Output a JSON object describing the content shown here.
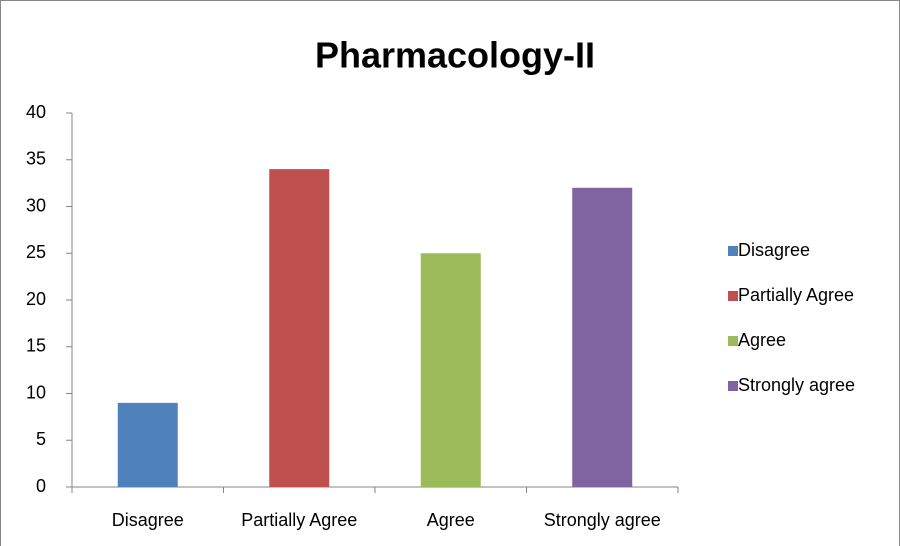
{
  "chart_data": {
    "type": "bar",
    "title": "Pharmacology-II",
    "categories": [
      "Disagree",
      "Partially Agree",
      "Agree",
      "Strongly agree"
    ],
    "values": [
      9,
      34,
      25,
      32
    ],
    "colors": [
      "#4f81bd",
      "#c0504d",
      "#9bbb59",
      "#8064a2"
    ],
    "ylim": [
      0,
      40
    ],
    "yticks": [
      0,
      5,
      10,
      15,
      20,
      25,
      30,
      35,
      40
    ],
    "grid": false,
    "legend": "right"
  }
}
